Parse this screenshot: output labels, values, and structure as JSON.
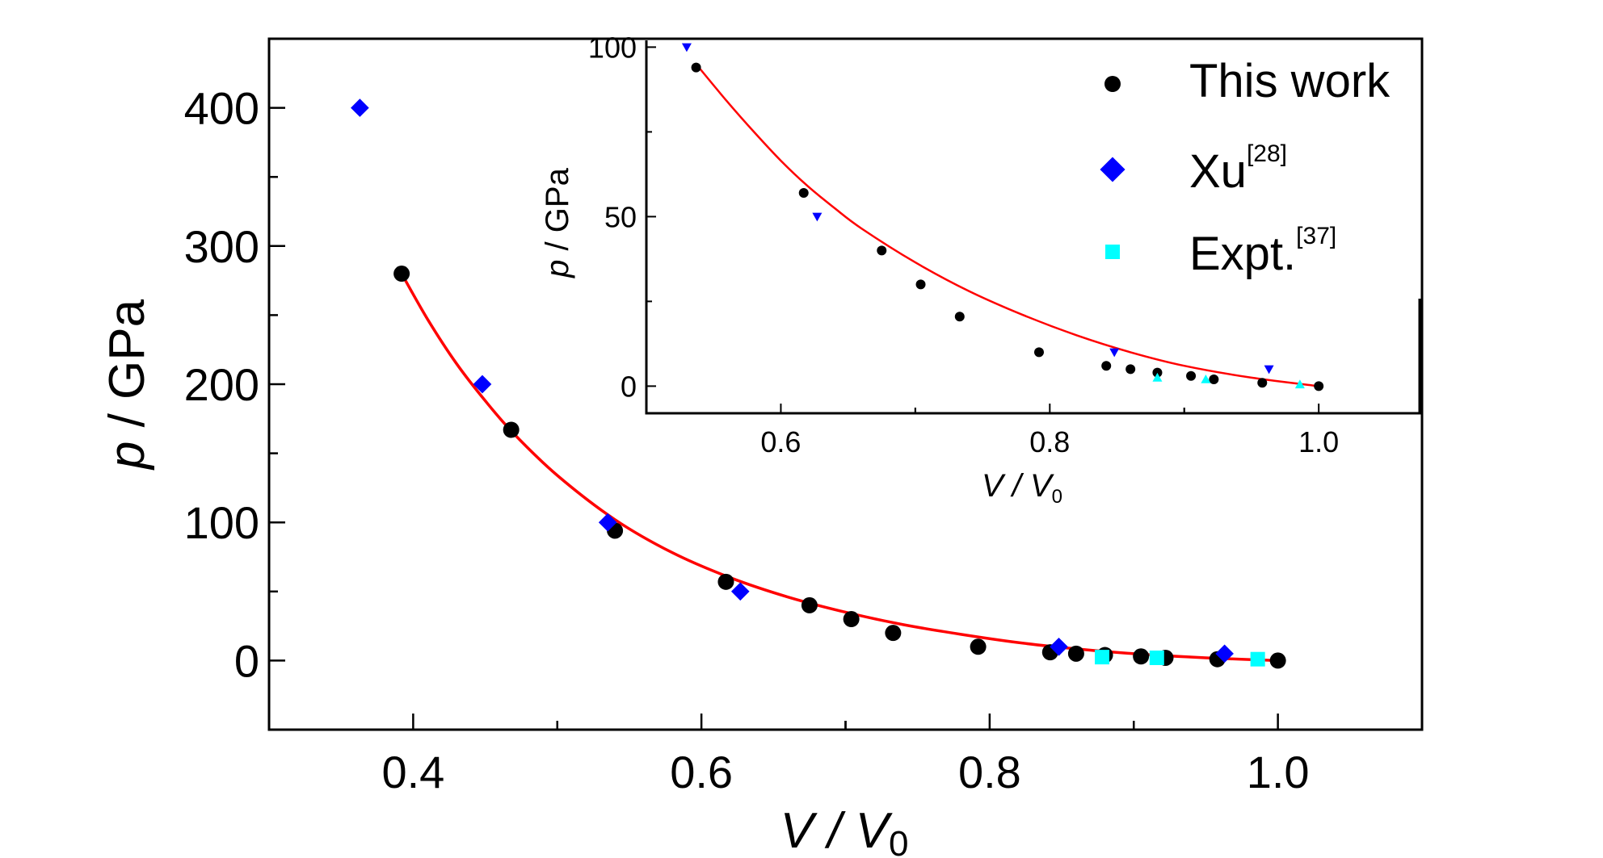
{
  "chart_data": [
    {
      "type": "scatter",
      "xlabel": {
        "main": "V / V",
        "sub": "0"
      },
      "ylabel": {
        "italic": "p",
        "rest": " / GPa"
      },
      "xlim": [
        0.3,
        1.1
      ],
      "ylim": [
        -50,
        450
      ],
      "xticks": [
        0.4,
        0.6,
        0.8,
        1.0
      ],
      "xtick_labels": [
        "0.4",
        "0.6",
        "0.8",
        "1.0"
      ],
      "yticks": [
        0,
        100,
        200,
        300,
        400
      ],
      "ytick_labels": [
        "0",
        "100",
        "200",
        "300",
        "400"
      ],
      "grid": false,
      "legend_position": "top-right",
      "series": [
        {
          "name": "This work",
          "marker": "circle",
          "color": "#000000",
          "x": [
            0.392,
            0.468,
            0.54,
            0.617,
            0.675,
            0.704,
            0.733,
            0.792,
            0.842,
            0.86,
            0.88,
            0.905,
            0.922,
            0.958,
            1.0
          ],
          "y": [
            280,
            167,
            94,
            57,
            40,
            30,
            20,
            10,
            6,
            5,
            4,
            3,
            2,
            1,
            0
          ]
        },
        {
          "name": "Xu",
          "name_sup": "[28]",
          "marker": "diamond",
          "color": "#0000ff",
          "x": [
            0.363,
            0.448,
            0.535,
            0.627,
            0.848,
            0.963
          ],
          "y": [
            400,
            200,
            100,
            50,
            10,
            5
          ]
        },
        {
          "name": "Expt.",
          "name_sup": "[37]",
          "marker": "square",
          "color": "#00ffff",
          "x": [
            0.878,
            0.916,
            0.986
          ],
          "y": [
            2.5,
            2,
            1
          ]
        }
      ],
      "fit_curve": {
        "color": "#ff0000",
        "x": [
          0.392,
          0.41,
          0.43,
          0.45,
          0.47,
          0.5,
          0.54,
          0.58,
          0.62,
          0.66,
          0.7,
          0.74,
          0.78,
          0.82,
          0.86,
          0.9,
          0.95,
          1.0
        ],
        "y": [
          280,
          247,
          215,
          188,
          164,
          134,
          102,
          78,
          60,
          46,
          35,
          26,
          19,
          13,
          8.5,
          5,
          2,
          0
        ]
      }
    },
    {
      "type": "scatter",
      "xlabel": {
        "main": "V / V",
        "sub": "0"
      },
      "ylabel": {
        "italic": "p",
        "rest": " / GPa"
      },
      "xlim": [
        0.5,
        1.075
      ],
      "ylim": [
        -8,
        102
      ],
      "xticks": [
        0.6,
        0.8,
        1.0
      ],
      "xtick_labels": [
        "0.6",
        "0.8",
        "1.0"
      ],
      "yticks": [
        0,
        50,
        100
      ],
      "ytick_labels": [
        "0",
        "50",
        "100"
      ],
      "grid": false,
      "series": [
        {
          "marker": "circle",
          "color": "#000000",
          "x": [
            0.537,
            0.617,
            0.675,
            0.704,
            0.733,
            0.792,
            0.842,
            0.86,
            0.88,
            0.905,
            0.922,
            0.958,
            1.0
          ],
          "y": [
            94,
            57,
            40,
            30,
            20.5,
            10,
            6,
            5,
            4,
            3,
            2,
            1,
            0
          ]
        },
        {
          "marker": "triangle-down",
          "color": "#0000ff",
          "x": [
            0.53,
            0.627,
            0.848,
            0.963
          ],
          "y": [
            100,
            50,
            10,
            5
          ]
        },
        {
          "marker": "triangle-up",
          "color": "#00ffff",
          "x": [
            0.88,
            0.916,
            0.986
          ],
          "y": [
            2.5,
            2,
            0.5
          ]
        }
      ],
      "fit_curve": {
        "color": "#ff0000",
        "x": [
          0.537,
          0.56,
          0.58,
          0.6,
          0.62,
          0.64,
          0.66,
          0.7,
          0.74,
          0.78,
          0.82,
          0.86,
          0.9,
          0.95,
          1.0
        ],
        "y": [
          95,
          84,
          75,
          66.5,
          59,
          52.5,
          46.5,
          36.5,
          28,
          21,
          15,
          10,
          6,
          2.5,
          0
        ]
      }
    }
  ]
}
